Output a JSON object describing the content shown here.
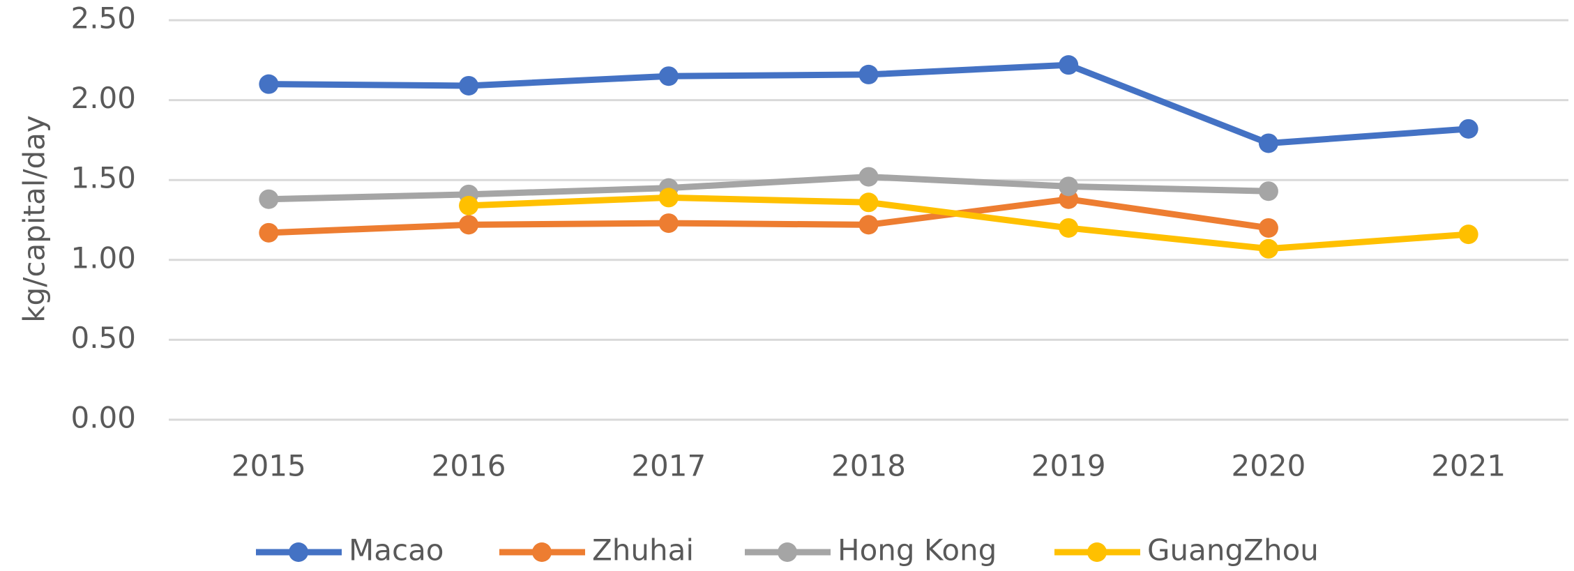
{
  "chart_data": {
    "type": "line",
    "y_label": "kg/capital/day",
    "categories": [
      "2015",
      "2016",
      "2017",
      "2018",
      "2019",
      "2020",
      "2021"
    ],
    "series": [
      {
        "name": "Macao",
        "color": "#4472c4",
        "values": [
          2.1,
          2.09,
          2.15,
          2.16,
          2.22,
          1.73,
          1.82
        ]
      },
      {
        "name": "Zhuhai",
        "color": "#ed7d31",
        "values": [
          1.17,
          1.22,
          1.23,
          1.22,
          1.38,
          1.2,
          null
        ]
      },
      {
        "name": "Hong Kong",
        "color": "#a5a5a5",
        "values": [
          1.38,
          1.41,
          1.45,
          1.52,
          1.46,
          1.43,
          null
        ]
      },
      {
        "name": "GuangZhou",
        "color": "#ffc000",
        "values": [
          null,
          1.34,
          1.39,
          1.36,
          1.2,
          1.07,
          1.16
        ]
      }
    ],
    "ylim": [
      0,
      2.5
    ],
    "yticks": [
      {
        "value": 0,
        "label": "0.00"
      },
      {
        "value": 0.5,
        "label": "0.50"
      },
      {
        "value": 1,
        "label": "1.00"
      },
      {
        "value": 1.5,
        "label": "1.50"
      },
      {
        "value": 2,
        "label": "2.00"
      },
      {
        "value": 2.5,
        "label": "2.50"
      }
    ],
    "grid": true,
    "legend": "bottom"
  }
}
